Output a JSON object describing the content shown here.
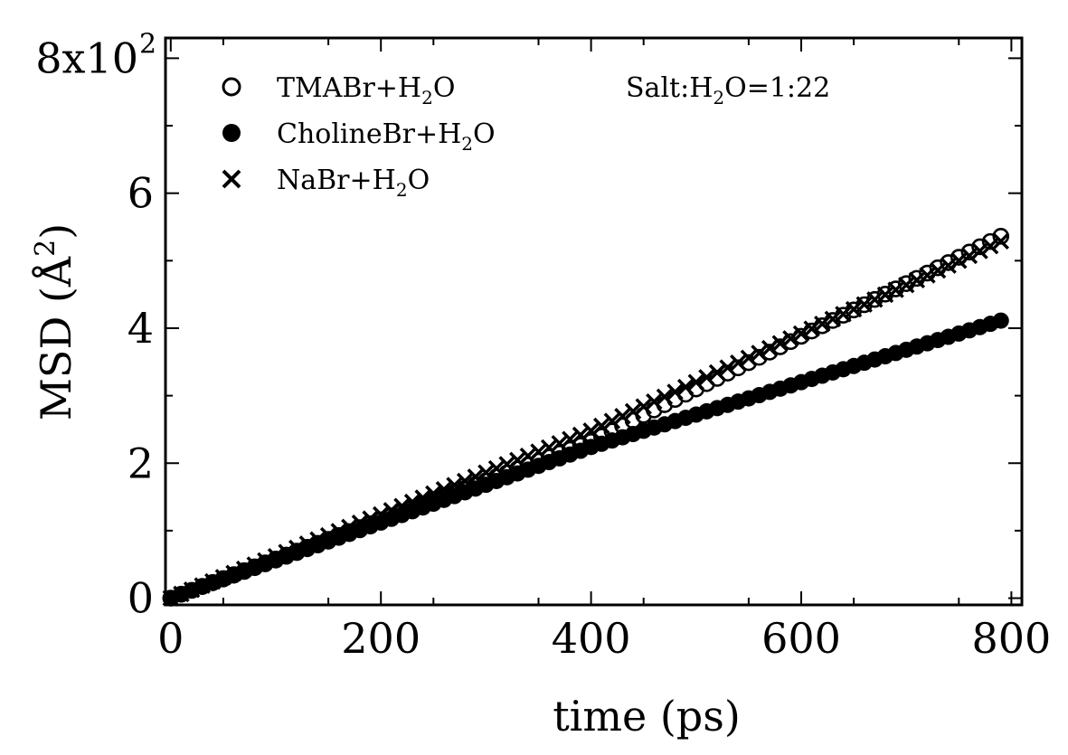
{
  "chart_data": {
    "type": "scatter",
    "xlabel": "time (ps)",
    "ylabel": "MSD (Å",
    "ylabel_sup": "2",
    "ylabel_close": ")",
    "xlim": [
      -5,
      810
    ],
    "ylim": [
      -10,
      830
    ],
    "x_ticks": [
      0,
      200,
      400,
      600,
      800
    ],
    "x_tick_labels": [
      "0",
      "200",
      "400",
      "600",
      "800"
    ],
    "y_ticks": [
      0,
      200,
      400,
      600,
      800
    ],
    "y_tick_labels": [
      "0",
      "2",
      "4",
      "6",
      "8x10"
    ],
    "y_top_exponent": "2",
    "annotation": {
      "prefix": "Salt:H",
      "sub": "2",
      "suffix": "O=1:22"
    },
    "series": [
      {
        "name": "TMABr+H2O",
        "legend": {
          "prefix": "TMABr+H",
          "sub": "2",
          "suffix": "O"
        },
        "marker": "open-circle",
        "slope_early": 0.58,
        "slope_late": 0.78,
        "break_x": 400
      },
      {
        "name": "CholineBr+H2O",
        "legend": {
          "prefix": "CholineBr+H",
          "sub": "2",
          "suffix": "O"
        },
        "marker": "filled-circle",
        "slope_early": 0.56,
        "slope_late": 0.48,
        "break_x": 400
      },
      {
        "name": "NaBr+H2O",
        "legend": {
          "prefix": "NaBr+H",
          "sub": "2",
          "suffix": "O"
        },
        "marker": "cross",
        "slope_early": 0.62,
        "slope_late": 0.72,
        "break_x": 400
      }
    ],
    "x_sample_start": 0,
    "x_sample_end": 790,
    "x_sample_step": 10,
    "end_values": [
      500,
      382,
      473
    ],
    "legend_placement": "top-left",
    "grid": false
  }
}
